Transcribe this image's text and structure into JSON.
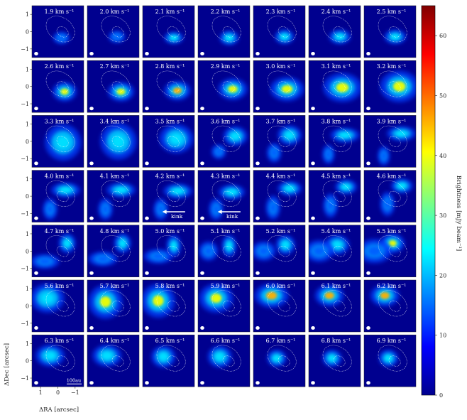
{
  "chart_data": {
    "type": "heatmap",
    "layout": {
      "rows": 7,
      "cols": 7
    },
    "panel_labels": [
      "1.9 km s⁻¹",
      "2.0 km s⁻¹",
      "2.1 km s⁻¹",
      "2.2 km s⁻¹",
      "2.3 km s⁻¹",
      "2.4 km s⁻¹",
      "2.5 km s⁻¹",
      "2.6 km s⁻¹",
      "2.7 km s⁻¹",
      "2.8 km s⁻¹",
      "2.9 km s⁻¹",
      "3.0 km s⁻¹",
      "3.1 km s⁻¹",
      "3.2 km s⁻¹",
      "3.3 km s⁻¹",
      "3.4 km s⁻¹",
      "3.5 km s⁻¹",
      "3.6 km s⁻¹",
      "3.7 km s⁻¹",
      "3.8 km s⁻¹",
      "3.9 km s⁻¹",
      "4.0 km s⁻¹",
      "4.1 km s⁻¹",
      "4.2 km s⁻¹",
      "4.3 km s⁻¹",
      "4.4 km s⁻¹",
      "4.5 km s⁻¹",
      "4.6 km s⁻¹",
      "4.7 km s⁻¹",
      "4.8 km s⁻¹",
      "5.0 km s⁻¹",
      "5.1 km s⁻¹",
      "5.2 km s⁻¹",
      "5.4 km s⁻¹",
      "5.5 km s⁻¹",
      "5.6 km s⁻¹",
      "5.7 km s⁻¹",
      "5.8 km s⁻¹",
      "5.9 km s⁻¹",
      "6.0 km s⁻¹",
      "6.1 km s⁻¹",
      "6.2 km s⁻¹",
      "6.3 km s⁻¹",
      "6.4 km s⁻¹",
      "6.5 km s⁻¹",
      "6.6 km s⁻¹",
      "6.7 km s⁻¹",
      "6.8 km s⁻¹",
      "6.9 km s⁻¹"
    ],
    "xlabel": "ΔRA [arcsec]",
    "ylabel": "ΔDec [arcsec]",
    "x_ticks": [
      "1",
      "0",
      "−1"
    ],
    "y_ticks": [
      "1",
      "0",
      "−1"
    ],
    "xlim": [
      1.5,
      -1.5
    ],
    "ylim": [
      -1.5,
      1.5
    ],
    "scalebar_label": "100au",
    "annotations": [
      {
        "panel": 23,
        "text": "kink"
      },
      {
        "panel": 24,
        "text": "kink"
      }
    ],
    "colorbar": {
      "label": "Brightness [mJy beam⁻¹]",
      "ticks": [
        0,
        10,
        20,
        30,
        40,
        50,
        60
      ],
      "range": [
        0,
        65
      ],
      "colormap": "jet"
    }
  },
  "colors": {
    "background_cmap_low": "#00008f",
    "contour": "#ffffff"
  }
}
